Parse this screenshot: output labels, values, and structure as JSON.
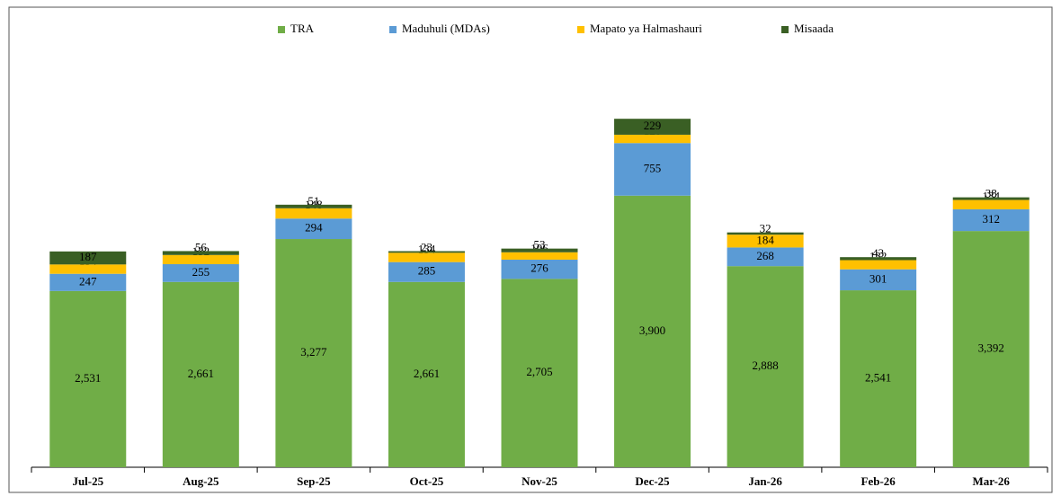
{
  "chart_data": {
    "type": "stacked-bar",
    "categories": [
      "Jul-25",
      "Aug-25",
      "Sep-25",
      "Oct-25",
      "Nov-25",
      "Dec-25",
      "Jan-26",
      "Feb-26",
      "Mar-26"
    ],
    "series": [
      {
        "name": "TRA",
        "color": "#70ad47",
        "values": [
          2531,
          2661,
          3277,
          2661,
          2705,
          3900,
          2888,
          2541,
          3392
        ],
        "value_labels": [
          "2,531",
          "2,661",
          "3,277",
          "2,661",
          "2,705",
          "3,900",
          "2,888",
          "2,541",
          "3,392"
        ]
      },
      {
        "name": "Maduhuli (MDAs)",
        "color": "#5b9bd5",
        "values": [
          247,
          255,
          294,
          285,
          276,
          755,
          268,
          301,
          312
        ]
      },
      {
        "name": "Mapato ya Halmashauri",
        "color": "#ffc000",
        "values": [
          134,
          132,
          148,
          134,
          106,
          120,
          184,
          132,
          134
        ]
      },
      {
        "name": "Misaada",
        "color": "#3a5f24",
        "values": [
          187,
          56,
          51,
          23,
          53,
          229,
          32,
          43,
          38
        ]
      }
    ],
    "ylim": [
      0,
      6000
    ],
    "legend": "top"
  }
}
